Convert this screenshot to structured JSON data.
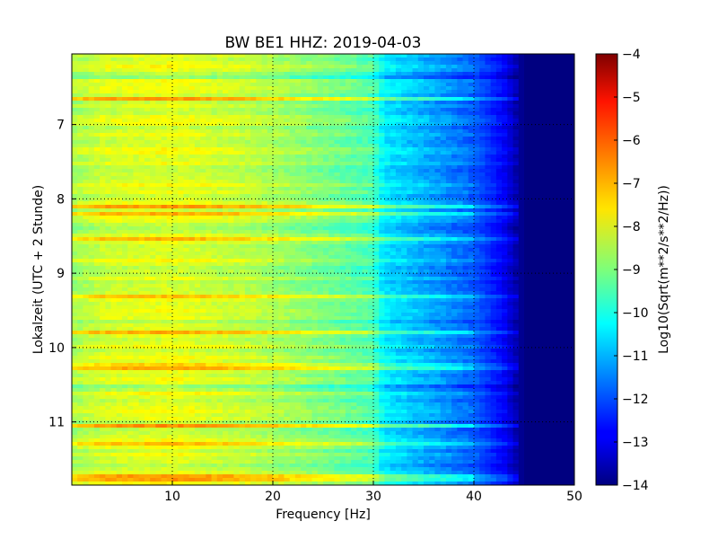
{
  "chart_data": {
    "type": "heatmap",
    "title": "BW BE1 HHZ: 2019-04-03",
    "xlabel": "Frequency [Hz]",
    "ylabel": "Lokalzeit (UTC + 2 Stunde)",
    "xlim": [
      0,
      50
    ],
    "ylim": [
      11.85,
      6.05
    ],
    "y_inverted": true,
    "x_ticks": [
      10,
      20,
      30,
      40,
      50
    ],
    "y_ticks": [
      7,
      8,
      9,
      10,
      11
    ],
    "grid": true,
    "colormap": "jet",
    "colorbar": {
      "label": "Log10(Sqrt(m**2/s**2/Hz))",
      "vmin": -14,
      "vmax": -4,
      "ticks": [
        -4,
        -5,
        -6,
        -7,
        -8,
        -9,
        -10,
        -11,
        -12,
        -13,
        -14
      ]
    },
    "spectral_profile_hz": [
      {
        "freq": 0,
        "value": -8.6
      },
      {
        "freq": 3,
        "value": -8.2
      },
      {
        "freq": 10,
        "value": -8.0
      },
      {
        "freq": 18,
        "value": -8.4
      },
      {
        "freq": 25,
        "value": -9.0
      },
      {
        "freq": 30,
        "value": -9.5
      },
      {
        "freq": 31,
        "value": -10.4
      },
      {
        "freq": 35,
        "value": -11.0
      },
      {
        "freq": 40,
        "value": -11.8
      },
      {
        "freq": 43,
        "value": -12.8
      },
      {
        "freq": 45,
        "value": -14.0
      },
      {
        "freq": 50,
        "value": -14.0
      }
    ],
    "bright_bands_hours": [
      6.65,
      8.1,
      8.2,
      8.55,
      9.3,
      9.8,
      10.25,
      11.05,
      11.3,
      11.75
    ],
    "quiet_bands_hours": [
      6.35,
      8.4,
      10.55
    ]
  }
}
